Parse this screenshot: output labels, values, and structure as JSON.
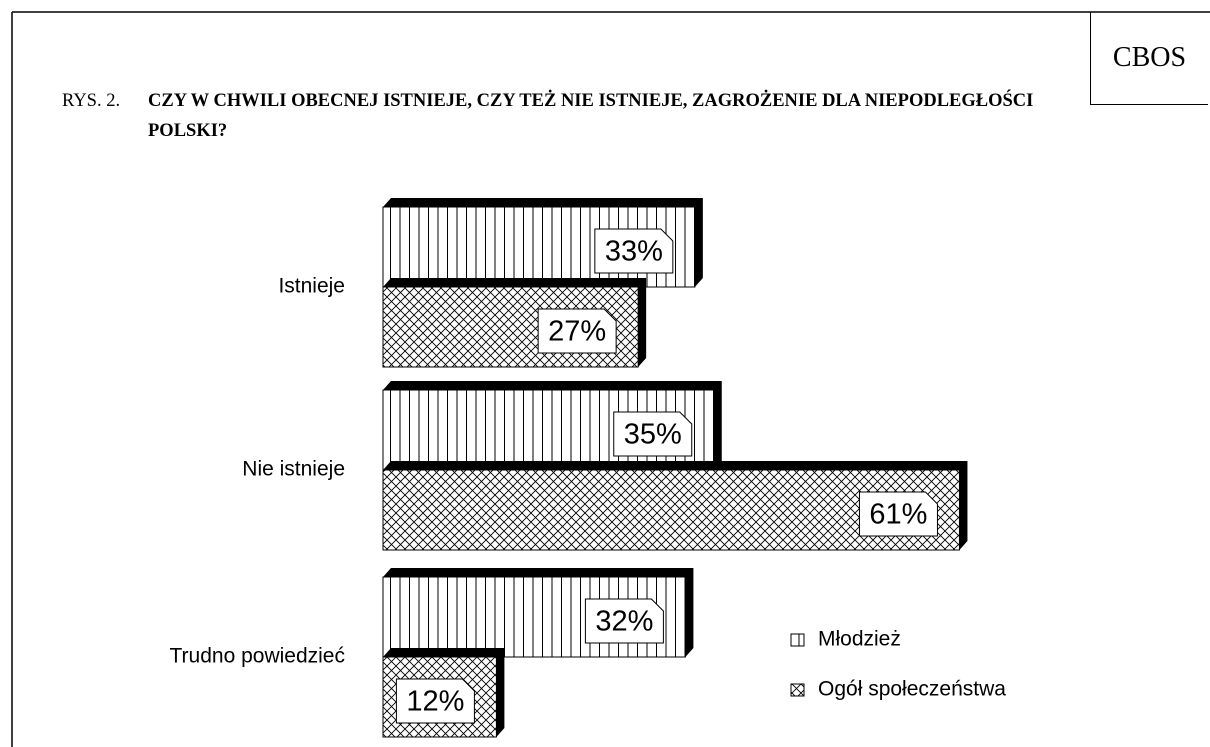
{
  "chart_data": {
    "type": "bar",
    "source": "CBOS",
    "figure_label": "RYS. 2.",
    "title": "CZY W CHWILI OBECNEJ ISTNIEJE, CZY TEŻ NIE ISTNIEJE, ZAGROŻENIE DLA NIEPODLEGŁOŚCI POLSKI?",
    "categories": [
      "Istnieje",
      "Nie istnieje",
      "Trudno powiedzieć"
    ],
    "series": [
      {
        "name": "Młodzież",
        "values": [
          33,
          35,
          32
        ],
        "value_labels": [
          "33%",
          "35%",
          "32%"
        ]
      },
      {
        "name": "Ogół społeczeństwa",
        "values": [
          27,
          61,
          12
        ],
        "value_labels": [
          "27%",
          "61%",
          "12%"
        ]
      }
    ]
  }
}
